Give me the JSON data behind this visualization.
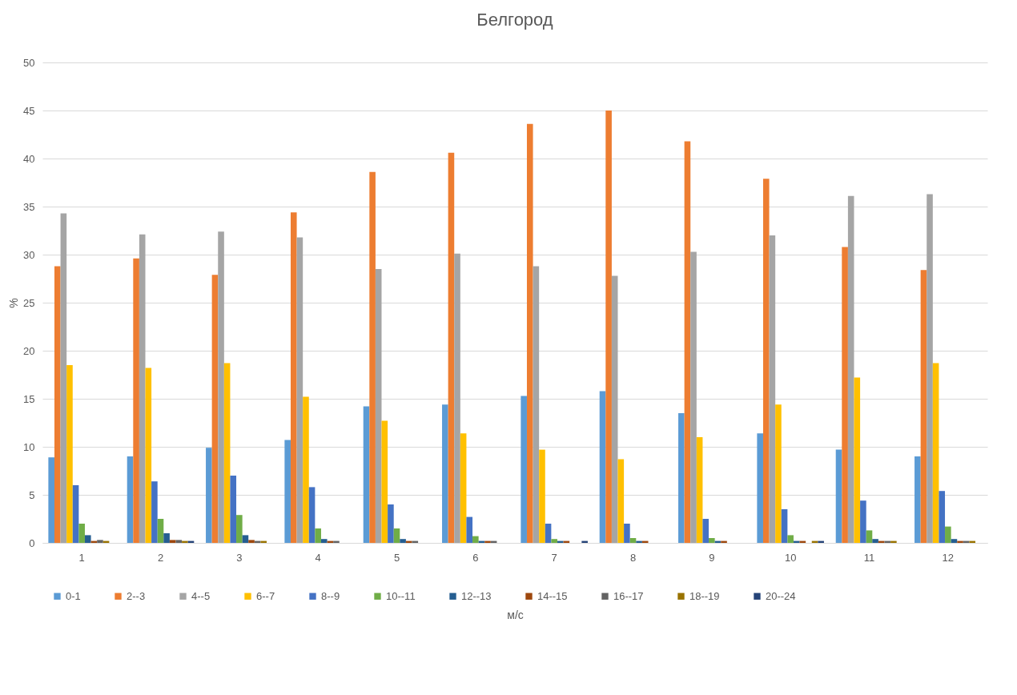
{
  "chart_data": {
    "type": "bar",
    "title": "Белгород",
    "xlabel": "м/с",
    "ylabel": "%",
    "categories": [
      "1",
      "2",
      "3",
      "4",
      "5",
      "6",
      "7",
      "8",
      "9",
      "10",
      "11",
      "12"
    ],
    "ylim": [
      0,
      50
    ],
    "yticks": [
      0,
      5,
      10,
      15,
      20,
      25,
      30,
      35,
      40,
      45,
      50
    ],
    "grid": "y",
    "legend": "bottom",
    "series": [
      {
        "name": "0-1",
        "color": "#5b9bd5",
        "values": [
          8.9,
          9.0,
          9.9,
          10.7,
          14.2,
          14.4,
          15.3,
          15.8,
          13.5,
          11.4,
          9.7,
          9.0
        ]
      },
      {
        "name": "2--3",
        "color": "#ed7d31",
        "values": [
          28.8,
          29.6,
          27.9,
          34.4,
          38.6,
          40.6,
          43.6,
          45.0,
          41.8,
          37.9,
          30.8,
          28.4
        ]
      },
      {
        "name": "4--5",
        "color": "#a5a5a5",
        "values": [
          34.3,
          32.1,
          32.4,
          31.8,
          28.5,
          30.1,
          28.8,
          27.8,
          30.3,
          32.0,
          36.1,
          36.3
        ]
      },
      {
        "name": "6--7",
        "color": "#ffc000",
        "values": [
          18.5,
          18.2,
          18.7,
          15.2,
          12.7,
          11.4,
          9.7,
          8.7,
          11.0,
          14.4,
          17.2,
          18.7
        ]
      },
      {
        "name": "8--9",
        "color": "#4472c4",
        "values": [
          6.0,
          6.4,
          7.0,
          5.8,
          4.0,
          2.7,
          2.0,
          2.0,
          2.5,
          3.5,
          4.4,
          5.4
        ]
      },
      {
        "name": "10--11",
        "color": "#70ad47",
        "values": [
          2.0,
          2.5,
          2.9,
          1.5,
          1.5,
          0.7,
          0.4,
          0.5,
          0.5,
          0.8,
          1.3,
          1.7
        ]
      },
      {
        "name": "12--13",
        "color": "#255e91",
        "values": [
          0.8,
          1.0,
          0.8,
          0.4,
          0.4,
          0.2,
          0.2,
          0.2,
          0.2,
          0.2,
          0.4,
          0.4
        ]
      },
      {
        "name": "14--15",
        "color": "#9e480e",
        "values": [
          0.2,
          0.3,
          0.3,
          0.2,
          0.2,
          0.2,
          0.2,
          0.2,
          0.2,
          0.2,
          0.2,
          0.2
        ]
      },
      {
        "name": "16--17",
        "color": "#636363",
        "values": [
          0.3,
          0.3,
          0.2,
          0.2,
          0.2,
          0.2,
          0,
          0,
          0,
          0,
          0.2,
          0.2
        ]
      },
      {
        "name": "18--19",
        "color": "#997300",
        "values": [
          0.2,
          0.2,
          0.2,
          0,
          0,
          0,
          0,
          0,
          0,
          0.2,
          0.2,
          0.2
        ]
      },
      {
        "name": "20--24",
        "color": "#264478",
        "values": [
          0,
          0.2,
          0,
          0,
          0,
          0,
          0.2,
          0,
          0,
          0.2,
          0,
          0
        ]
      }
    ]
  }
}
